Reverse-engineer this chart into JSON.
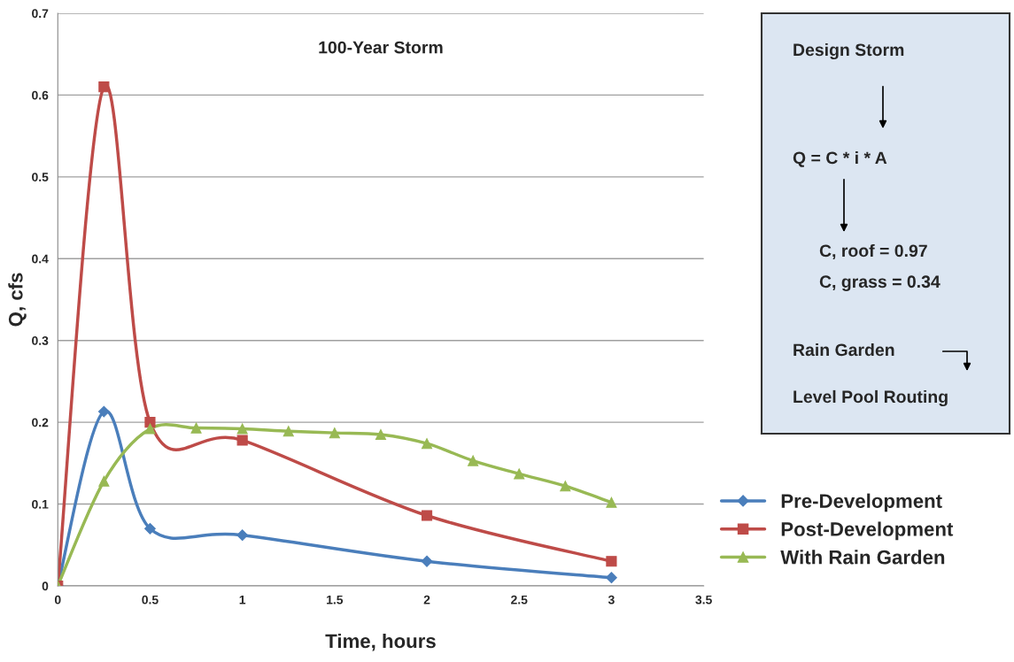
{
  "chart_data": {
    "type": "line",
    "title": "100-Year Storm",
    "xlabel": "Time, hours",
    "ylabel": "Q, cfs",
    "xlim": [
      0,
      3.5
    ],
    "xticks": [
      0,
      0.5,
      1,
      1.5,
      2,
      2.5,
      3,
      3.5
    ],
    "ylim": [
      0,
      0.7
    ],
    "yticks": [
      0,
      0.1,
      0.2,
      0.3,
      0.4,
      0.5,
      0.6,
      0.7
    ],
    "grid": "y",
    "legend": "bottom right",
    "series": [
      {
        "name": "Pre-Development",
        "color": "#4a7ebb",
        "marker": "diamond",
        "x": [
          0,
          0.25,
          0.5,
          1,
          2,
          3
        ],
        "values": [
          0,
          0.213,
          0.07,
          0.062,
          0.03,
          0.01
        ]
      },
      {
        "name": "Post-Development",
        "color": "#be4b48",
        "marker": "square",
        "x": [
          0,
          0.25,
          0.5,
          1,
          2,
          3
        ],
        "values": [
          0,
          0.61,
          0.2,
          0.178,
          0.086,
          0.03
        ]
      },
      {
        "name": "With Rain Garden",
        "color": "#98b954",
        "marker": "triangle",
        "x": [
          0,
          0.25,
          0.5,
          0.75,
          1,
          1.25,
          1.5,
          1.75,
          2,
          2.25,
          2.5,
          2.75,
          3
        ],
        "values": [
          0,
          0.128,
          0.192,
          0.193,
          0.192,
          0.189,
          0.187,
          0.185,
          0.174,
          0.153,
          0.137,
          0.122,
          0.102
        ]
      }
    ],
    "annotations": [
      "Design Storm",
      "Q = C * i * A",
      "C, roof = 0.97",
      "C, grass = 0.34",
      "Rain Garden",
      "Level Pool Routing"
    ]
  }
}
